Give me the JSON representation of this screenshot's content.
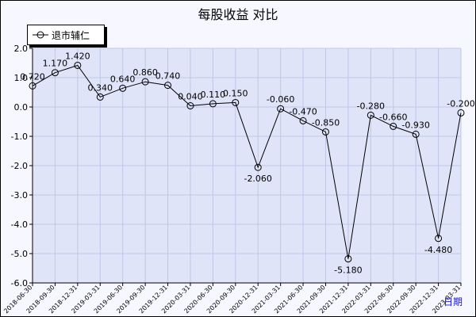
{
  "chart_data": {
    "type": "line",
    "title": "每股收益  对比",
    "xlabel": "日期",
    "ylabel": "",
    "ylim": [
      -6.0,
      2.0
    ],
    "yticks": [
      "2.0",
      "1.0",
      "0.0",
      "-1.0",
      "-2.0",
      "-3.0",
      "-4.0",
      "-5.0",
      "-6.0"
    ],
    "grid": true,
    "legend_position": "top-left",
    "colors": {
      "plot_bg": "#dfe4f8",
      "line": "#000000",
      "grid": "#bfc7e8"
    },
    "x": [
      "2018-06-30",
      "2018-09-30",
      "2018-12-31",
      "2019-03-31",
      "2019-06-30",
      "2019-09-30",
      "2019-12-31",
      "2020-03-31",
      "2020-06-30",
      "2020-09-30",
      "2020-12-31",
      "2021-03-31",
      "2021-06-30",
      "2021-09-30",
      "2021-12-31",
      "2022-03-31",
      "2022-06-30",
      "2022-09-30",
      "2022-12-31",
      "2023-03-31"
    ],
    "series": [
      {
        "name": "退市辅仁",
        "values": [
          0.72,
          1.17,
          1.42,
          0.34,
          0.64,
          0.86,
          0.74,
          0.04,
          0.11,
          0.15,
          -2.06,
          -0.06,
          -0.47,
          -0.85,
          -5.18,
          -0.28,
          -0.66,
          -0.93,
          -4.48,
          -0.2
        ],
        "labels": [
          "0.720",
          "1.170",
          "1.420",
          "0.340",
          "0.640",
          "0.860",
          "0.740",
          "0.040",
          "0.110",
          "0.150",
          "-2.060",
          "-0.060",
          "-0.470",
          "-0.850",
          "-5.180",
          "-0.280",
          "-0.660",
          "-0.930",
          "-4.480",
          "-0.200"
        ]
      }
    ]
  }
}
